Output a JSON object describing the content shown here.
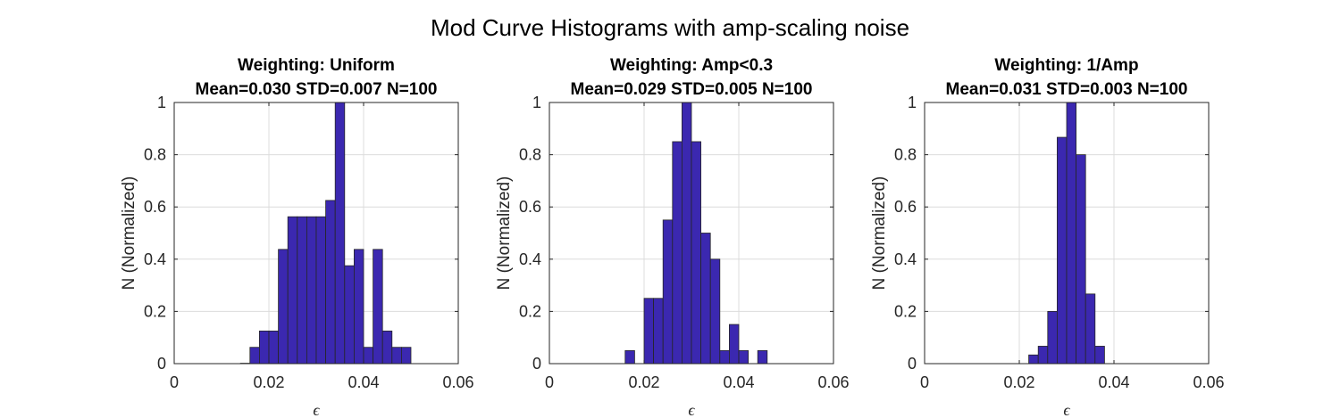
{
  "figure": {
    "title": "Mod Curve Histograms with amp-scaling noise",
    "bar_color": "#3b28b0",
    "edge_color": "#262626"
  },
  "chart_data": [
    {
      "type": "bar",
      "title": "Weighting: Uniform",
      "subtitle": "Mean=0.030 STD=0.007 N=100",
      "xlabel": "ϵ",
      "ylabel": "N (Normalized)",
      "xlim": [
        0,
        0.06
      ],
      "ylim": [
        0,
        1
      ],
      "xticks": [
        "0",
        "0.02",
        "0.04",
        "0.06"
      ],
      "yticks": [
        "0",
        "0.2",
        "0.4",
        "0.6",
        "0.8",
        "1"
      ],
      "grid": true,
      "bin_start": 0.01,
      "bin_width": 0.002,
      "values": [
        0,
        0,
        0.0015,
        0.0625,
        0.125,
        0.125,
        0.4375,
        0.5625,
        0.5625,
        0.5625,
        0.5625,
        0.625,
        1.0,
        0.375,
        0.4375,
        0.0625,
        0.4375,
        0.125,
        0.0625,
        0.0625,
        0,
        0,
        0,
        0
      ]
    },
    {
      "type": "bar",
      "title": "Weighting: Amp<0.3",
      "subtitle": "Mean=0.029 STD=0.005 N=100",
      "xlabel": "ϵ",
      "ylabel": "N (Normalized)",
      "xlim": [
        0,
        0.06
      ],
      "ylim": [
        0,
        1
      ],
      "xticks": [
        "0",
        "0.02",
        "0.04",
        "0.06"
      ],
      "yticks": [
        "0",
        "0.2",
        "0.4",
        "0.6",
        "0.8",
        "1"
      ],
      "grid": true,
      "bin_start": 0.01,
      "bin_width": 0.002,
      "values": [
        0,
        0,
        0,
        0.05,
        0,
        0.25,
        0.25,
        0.55,
        0.85,
        1.0,
        0.85,
        0.5,
        0.4,
        0.05,
        0.15,
        0.05,
        0,
        0.05,
        0,
        0,
        0,
        0
      ]
    },
    {
      "type": "bar",
      "title": "Weighting: 1/Amp",
      "subtitle": "Mean=0.031 STD=0.003 N=100",
      "xlabel": "ϵ",
      "ylabel": "N (Normalized)",
      "xlim": [
        0,
        0.06
      ],
      "ylim": [
        0,
        1
      ],
      "xticks": [
        "0",
        "0.02",
        "0.04",
        "0.06"
      ],
      "yticks": [
        "0",
        "0.2",
        "0.4",
        "0.6",
        "0.8",
        "1"
      ],
      "grid": true,
      "bin_start": 0.01,
      "bin_width": 0.002,
      "values": [
        0,
        0,
        0,
        0,
        0,
        0,
        0.0333,
        0.0667,
        0.2,
        0.8667,
        1.0,
        0.8,
        0.2667,
        0.0667,
        0,
        0,
        0,
        0,
        0,
        0,
        0,
        0
      ]
    }
  ]
}
